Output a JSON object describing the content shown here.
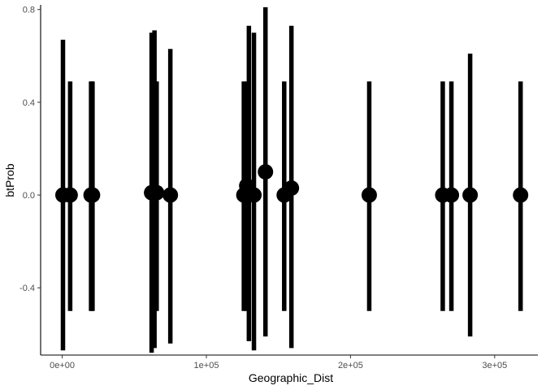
{
  "chart_data": {
    "type": "scatter",
    "title": "",
    "xlabel": "Geographic_Dist",
    "ylabel": "btProb",
    "xlim": [
      -15000,
      330000
    ],
    "ylim": [
      -0.69,
      0.82
    ],
    "x_ticks": [
      0,
      100000,
      200000,
      300000
    ],
    "x_tick_labels": [
      "0e+00",
      "1e+05",
      "2e+05",
      "3e+05"
    ],
    "y_ticks": [
      -0.4,
      0.0,
      0.4,
      0.8
    ],
    "y_tick_labels": [
      "-0.4",
      "0.0",
      "0.4",
      "0.8"
    ],
    "grid": false,
    "legend": "none",
    "colors": {
      "marks": "#000000",
      "axis": "#000000",
      "tick_text": "#4d4d4d"
    },
    "points": [
      {
        "x": 500,
        "y": 0.0,
        "ymin": -0.67,
        "ymax": 0.67
      },
      {
        "x": 5500,
        "y": 0.0,
        "ymin": -0.5,
        "ymax": 0.49
      },
      {
        "x": 20000,
        "y": 0.0,
        "ymin": -0.5,
        "ymax": 0.49
      },
      {
        "x": 21000,
        "y": 0.0,
        "ymin": -0.5,
        "ymax": 0.49
      },
      {
        "x": 62000,
        "y": 0.01,
        "ymin": -0.68,
        "ymax": 0.7
      },
      {
        "x": 64000,
        "y": 0.01,
        "ymin": -0.66,
        "ymax": 0.71
      },
      {
        "x": 65500,
        "y": 0.01,
        "ymin": -0.5,
        "ymax": 0.49
      },
      {
        "x": 75000,
        "y": 0.0,
        "ymin": -0.64,
        "ymax": 0.63
      },
      {
        "x": 126000,
        "y": 0.0,
        "ymin": -0.5,
        "ymax": 0.49
      },
      {
        "x": 128000,
        "y": 0.04,
        "ymin": -0.5,
        "ymax": 0.49
      },
      {
        "x": 129500,
        "y": 0.0,
        "ymin": -0.63,
        "ymax": 0.73
      },
      {
        "x": 133000,
        "y": 0.0,
        "ymin": -0.67,
        "ymax": 0.7
      },
      {
        "x": 141000,
        "y": 0.1,
        "ymin": -0.61,
        "ymax": 0.81
      },
      {
        "x": 154000,
        "y": 0.0,
        "ymin": -0.5,
        "ymax": 0.49
      },
      {
        "x": 159000,
        "y": 0.03,
        "ymin": -0.66,
        "ymax": 0.73
      },
      {
        "x": 213000,
        "y": 0.0,
        "ymin": -0.5,
        "ymax": 0.49
      },
      {
        "x": 264000,
        "y": 0.0,
        "ymin": -0.5,
        "ymax": 0.49
      },
      {
        "x": 270000,
        "y": 0.0,
        "ymin": -0.5,
        "ymax": 0.49
      },
      {
        "x": 283000,
        "y": 0.0,
        "ymin": -0.61,
        "ymax": 0.61
      },
      {
        "x": 318000,
        "y": 0.0,
        "ymin": -0.5,
        "ymax": 0.49
      }
    ]
  }
}
